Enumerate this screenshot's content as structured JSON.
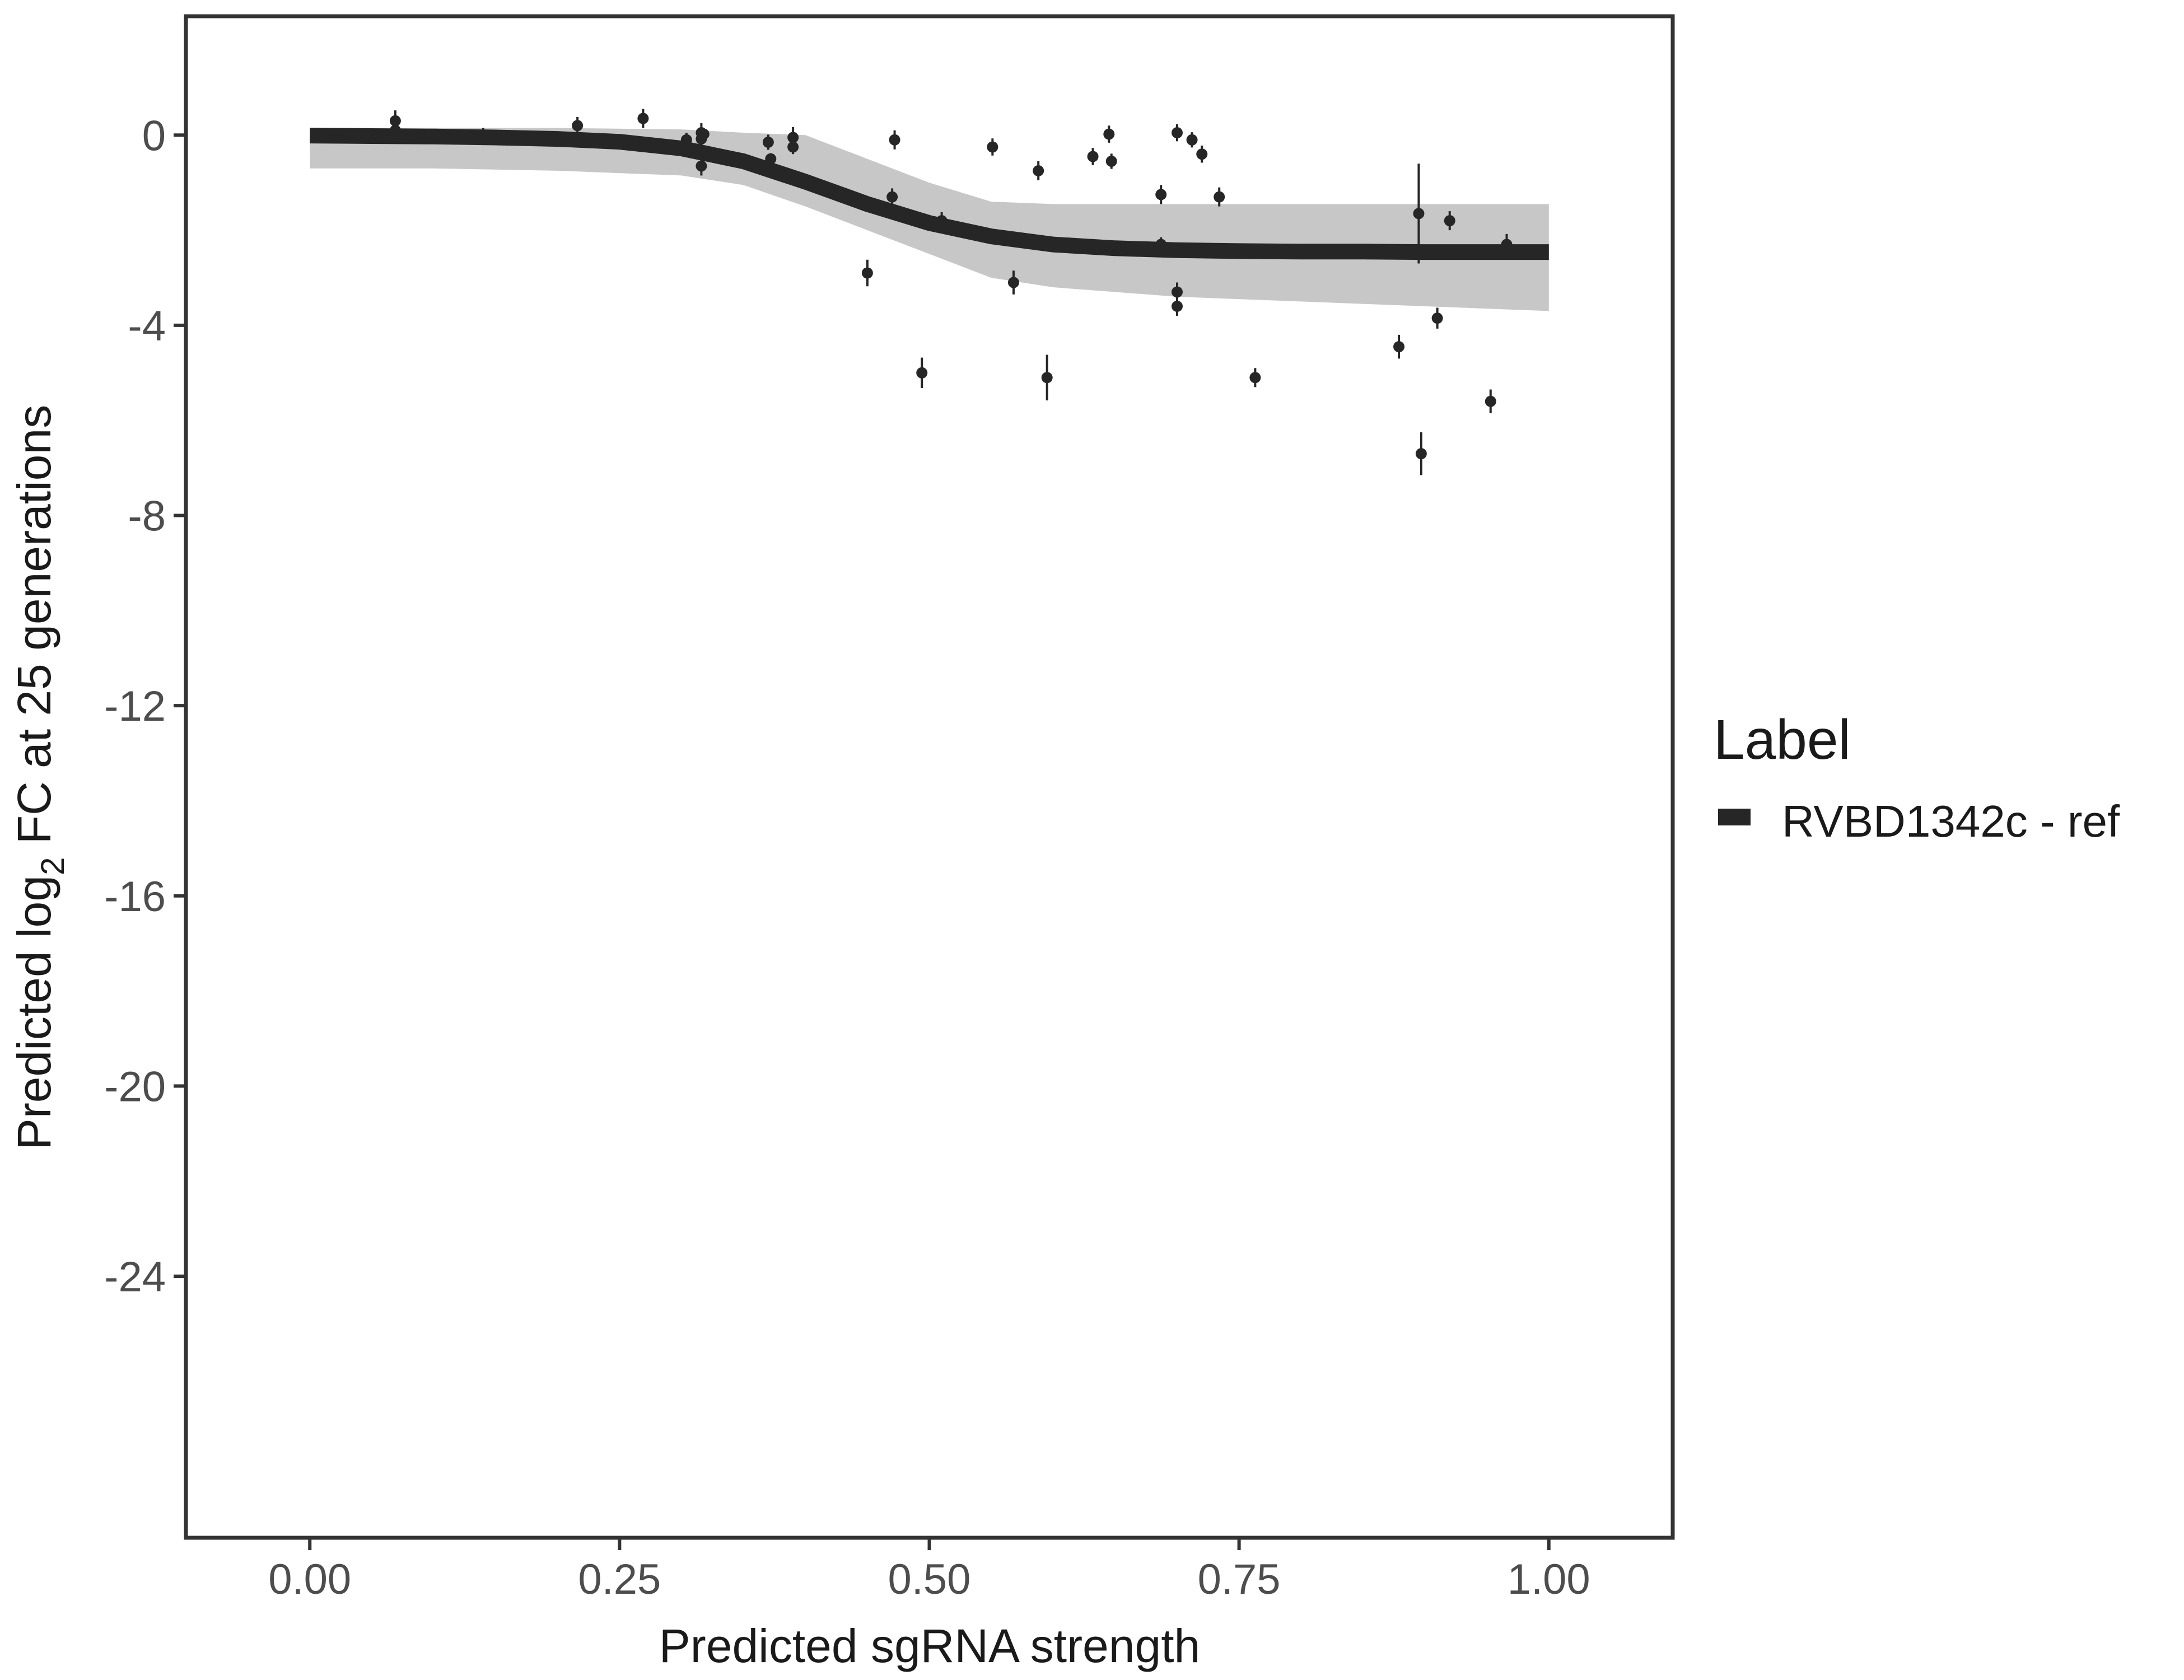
{
  "chart_data": {
    "type": "scatter",
    "xlabel": "Predicted sgRNA strength",
    "ylabel_parts": [
      "Predicted  log",
      "2",
      " FC at 25 generations"
    ],
    "xlim": [
      -0.1,
      1.1
    ],
    "ylim": [
      -29.5,
      2.5
    ],
    "x_ticks": [
      0,
      0.25,
      0.5,
      0.75,
      1
    ],
    "x_tick_labels": [
      "0.00",
      "0.25",
      "0.50",
      "0.75",
      "1.00"
    ],
    "y_ticks": [
      0,
      -4,
      -8,
      -12,
      -16,
      -20,
      -24
    ],
    "y_tick_labels": [
      "0",
      "-4",
      "-8",
      "-12",
      "-16",
      "-20",
      "-24"
    ],
    "grid": false,
    "legend": {
      "title": "Label",
      "position": "right",
      "entries": [
        {
          "label": "RVBD1342c - ref",
          "color": "#262626"
        }
      ]
    },
    "fit_curve": {
      "name": "RVBD1342c - ref",
      "color": "#262626",
      "x": [
        0,
        0.05,
        0.1,
        0.15,
        0.2,
        0.25,
        0.3,
        0.35,
        0.4,
        0.45,
        0.5,
        0.55,
        0.6,
        0.65,
        0.7,
        0.75,
        0.8,
        0.85,
        0.9,
        0.95,
        1.0
      ],
      "y": [
        -0.01,
        -0.02,
        -0.03,
        -0.05,
        -0.08,
        -0.14,
        -0.28,
        -0.55,
        -0.98,
        -1.45,
        -1.85,
        -2.13,
        -2.3,
        -2.38,
        -2.42,
        -2.44,
        -2.45,
        -2.45,
        -2.46,
        -2.46,
        -2.46
      ]
    },
    "uncertainty_band": {
      "color": "#999999",
      "x": [
        0,
        0.1,
        0.2,
        0.3,
        0.35,
        0.4,
        0.45,
        0.5,
        0.55,
        0.6,
        0.7,
        0.8,
        0.9,
        1.0
      ],
      "upper": [
        0.15,
        0.15,
        0.15,
        0.12,
        0.05,
        0.0,
        -0.5,
        -1.0,
        -1.4,
        -1.45,
        -1.45,
        -1.45,
        -1.45,
        -1.45
      ],
      "lower": [
        -0.7,
        -0.7,
        -0.75,
        -0.85,
        -1.05,
        -1.5,
        -2.0,
        -2.5,
        -3.0,
        -3.2,
        -3.4,
        -3.5,
        -3.6,
        -3.7
      ]
    },
    "points": [
      {
        "x": 0.069,
        "y": 0.3,
        "err": 0.22
      },
      {
        "x": 0.069,
        "y": 0.1,
        "err": 0.14
      },
      {
        "x": 0.14,
        "y": -0.03,
        "err": 0.18
      },
      {
        "x": 0.216,
        "y": 0.2,
        "err": 0.18
      },
      {
        "x": 0.269,
        "y": 0.35,
        "err": 0.2
      },
      {
        "x": 0.304,
        "y": -0.1,
        "err": 0.15
      },
      {
        "x": 0.316,
        "y": 0.05,
        "err": 0.2
      },
      {
        "x": 0.316,
        "y": -0.08,
        "err": 0.15
      },
      {
        "x": 0.316,
        "y": -0.65,
        "err": 0.2
      },
      {
        "x": 0.318,
        "y": 0.02,
        "err": 0.12
      },
      {
        "x": 0.37,
        "y": -0.15,
        "err": 0.16
      },
      {
        "x": 0.372,
        "y": -0.5,
        "err": 0.12
      },
      {
        "x": 0.39,
        "y": -0.05,
        "err": 0.22
      },
      {
        "x": 0.39,
        "y": -0.25,
        "err": 0.15
      },
      {
        "x": 0.45,
        "y": -2.9,
        "err": 0.28
      },
      {
        "x": 0.47,
        "y": -1.3,
        "err": 0.18
      },
      {
        "x": 0.472,
        "y": -0.1,
        "err": 0.2
      },
      {
        "x": 0.494,
        "y": -5.0,
        "err": 0.32
      },
      {
        "x": 0.51,
        "y": -1.8,
        "err": 0.18
      },
      {
        "x": 0.551,
        "y": -0.25,
        "err": 0.18
      },
      {
        "x": 0.568,
        "y": -3.1,
        "err": 0.25
      },
      {
        "x": 0.588,
        "y": -0.75,
        "err": 0.2
      },
      {
        "x": 0.595,
        "y": -5.1,
        "err": 0.48
      },
      {
        "x": 0.632,
        "y": -0.45,
        "err": 0.18
      },
      {
        "x": 0.645,
        "y": 0.02,
        "err": 0.18
      },
      {
        "x": 0.647,
        "y": -0.55,
        "err": 0.16
      },
      {
        "x": 0.687,
        "y": -1.25,
        "err": 0.2
      },
      {
        "x": 0.687,
        "y": -2.3,
        "err": 0.15
      },
      {
        "x": 0.7,
        "y": 0.05,
        "err": 0.18
      },
      {
        "x": 0.7,
        "y": -3.3,
        "err": 0.2
      },
      {
        "x": 0.7,
        "y": -3.6,
        "err": 0.2
      },
      {
        "x": 0.712,
        "y": -0.1,
        "err": 0.16
      },
      {
        "x": 0.72,
        "y": -0.4,
        "err": 0.18
      },
      {
        "x": 0.734,
        "y": -1.3,
        "err": 0.2
      },
      {
        "x": 0.763,
        "y": -5.1,
        "err": 0.2
      },
      {
        "x": 0.879,
        "y": -4.45,
        "err": 0.25
      },
      {
        "x": 0.895,
        "y": -1.65,
        "err": 1.05
      },
      {
        "x": 0.897,
        "y": -6.7,
        "err": 0.45
      },
      {
        "x": 0.91,
        "y": -3.85,
        "err": 0.22
      },
      {
        "x": 0.92,
        "y": -1.8,
        "err": 0.2
      },
      {
        "x": 0.953,
        "y": -5.6,
        "err": 0.25
      },
      {
        "x": 0.966,
        "y": -2.3,
        "err": 0.22
      }
    ]
  }
}
